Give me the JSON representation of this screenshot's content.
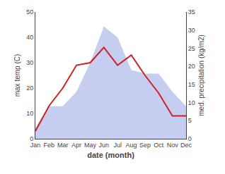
{
  "chart_data": {
    "type": "line",
    "categories": [
      "Jan",
      "Feb",
      "Mar",
      "Apr",
      "May",
      "Jun",
      "Jul",
      "Aug",
      "Sep",
      "Oct",
      "Nov",
      "Dec"
    ],
    "xlabel": "date (month)",
    "ylabel": "max temp (C)",
    "y2label": "med. precipitation (kg/m2)",
    "series": [
      {
        "type": "area",
        "color": "#c5cdf0",
        "axis": "y2",
        "values": [
          3,
          9,
          9,
          13,
          21,
          31,
          28,
          19,
          18,
          18,
          13,
          9
        ]
      },
      {
        "type": "line",
        "color": "#cc2222",
        "values": [
          3,
          13,
          20,
          29,
          30,
          36,
          29,
          33,
          25,
          18,
          9,
          9
        ]
      }
    ],
    "ylim": [
      0,
      50
    ],
    "yticks": [
      0,
      10,
      20,
      30,
      40,
      50
    ],
    "y2lim": [
      0,
      35
    ],
    "y2ticks": [
      0,
      5,
      10,
      15,
      20,
      25,
      30,
      35
    ],
    "grid": false
  }
}
